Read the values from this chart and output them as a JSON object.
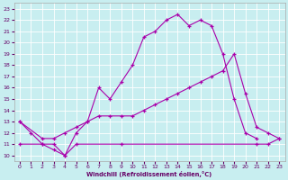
{
  "xlabel": "Windchill (Refroidissement éolien,°C)",
  "background_color": "#c8eef0",
  "grid_color": "#ffffff",
  "line_color": "#aa00aa",
  "xlim": [
    -0.5,
    23.5
  ],
  "ylim": [
    9.5,
    23.5
  ],
  "c1_x": [
    0,
    1,
    2,
    3,
    4,
    5,
    6,
    7,
    8,
    9,
    10,
    11,
    12,
    13,
    14,
    15,
    16,
    17,
    18,
    19,
    20,
    21
  ],
  "c1_y": [
    13,
    12,
    11,
    11,
    10,
    12,
    13,
    16,
    15,
    16.5,
    18,
    20.5,
    21,
    22,
    22.5,
    21.5,
    22,
    21.5,
    19,
    15,
    12,
    11.5
  ],
  "c2_x": [
    0,
    2,
    3,
    4,
    5,
    6,
    7,
    8,
    9,
    10,
    11,
    12,
    13,
    14,
    15,
    16,
    17,
    18,
    19,
    20,
    21,
    22,
    23
  ],
  "c2_y": [
    13,
    11.5,
    11.5,
    12,
    12.5,
    13,
    13.5,
    13.5,
    13.5,
    13.5,
    14,
    14.5,
    15,
    15.5,
    16,
    16.5,
    17,
    17.5,
    19,
    15.5,
    12.5,
    12,
    11.5
  ],
  "c3_x": [
    0,
    2,
    3,
    4,
    5,
    9,
    21,
    22,
    23
  ],
  "c3_y": [
    11,
    11,
    10.5,
    10,
    11,
    11,
    11,
    11,
    11.5
  ]
}
